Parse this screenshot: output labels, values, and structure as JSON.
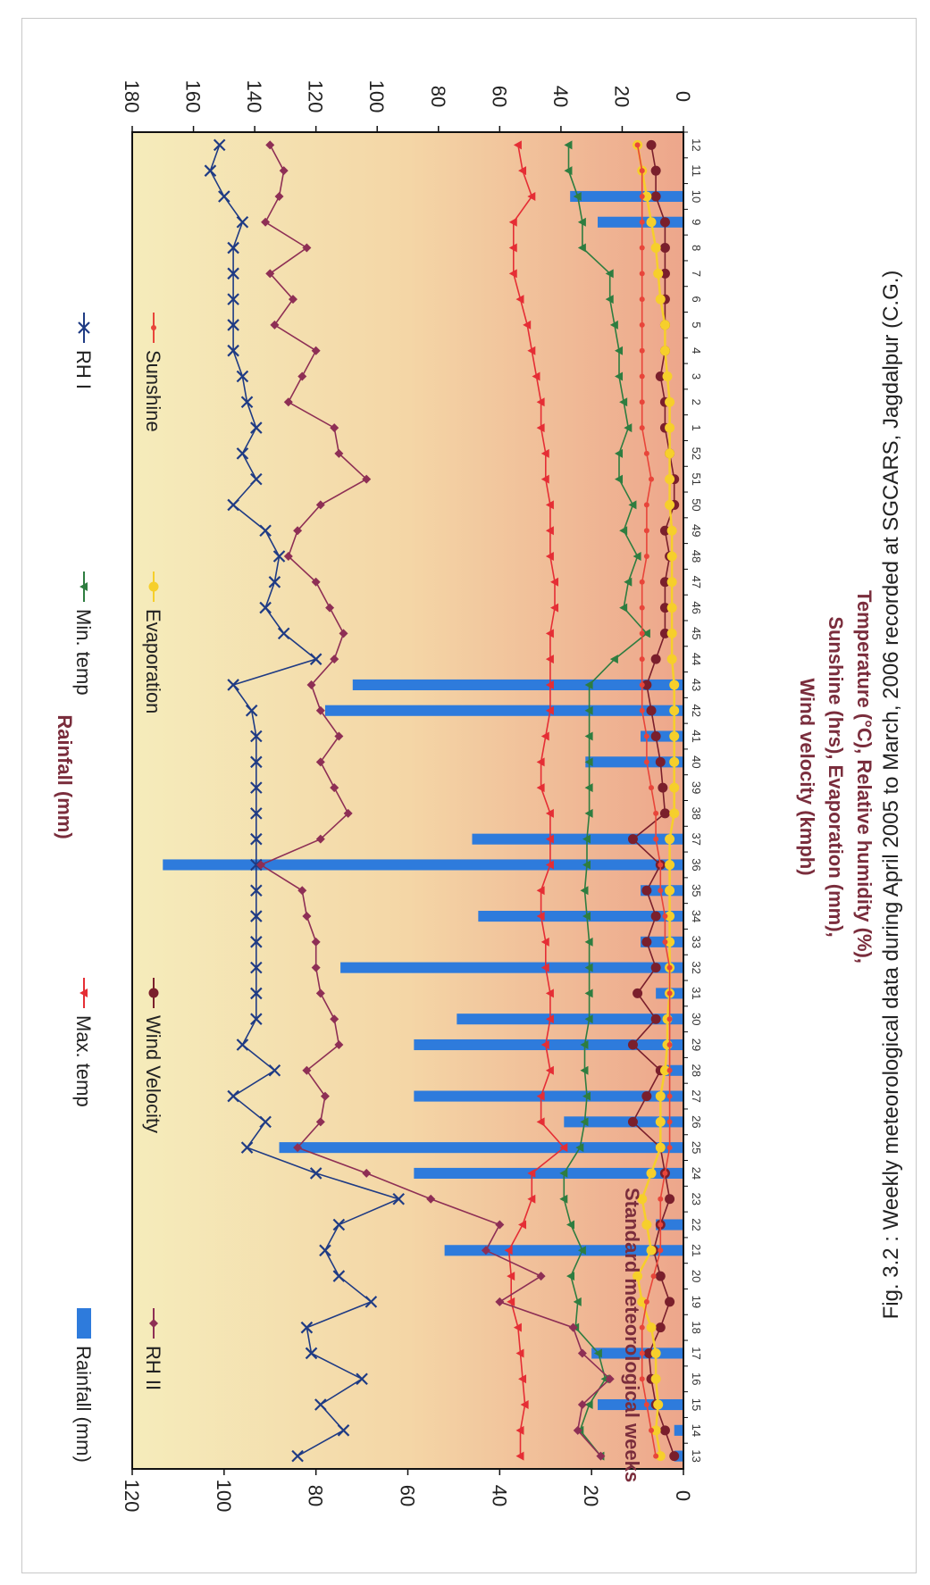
{
  "chart_data": {
    "type": "line",
    "caption": "Fig. 3.2 : Weekly meteorological data during April 2005 to March, 2006 recorded at SGCARS, Jagdalpur (C.G.)",
    "xlabel": "Standard meteorological weeks",
    "ylabel_left": [
      "Temperature (°C), Relative humidity (%),",
      "Sunshine (hrs), Evaporation (mm),",
      "Wind velocity (kmph)"
    ],
    "ylabel_right": "Rainfall (mm)",
    "ylim_left": [
      0,
      120
    ],
    "ylim_right": [
      0,
      180
    ],
    "yticks_left": [
      "0",
      "20",
      "40",
      "60",
      "80",
      "100",
      "120"
    ],
    "yticks_right": [
      "0",
      "20",
      "40",
      "60",
      "80",
      "100",
      "120",
      "140",
      "160",
      "180"
    ],
    "categories": [
      "13",
      "14",
      "15",
      "16",
      "17",
      "18",
      "19",
      "20",
      "21",
      "22",
      "23",
      "24",
      "25",
      "26",
      "27",
      "28",
      "29",
      "30",
      "31",
      "32",
      "33",
      "34",
      "35",
      "36",
      "37",
      "38",
      "39",
      "40",
      "41",
      "42",
      "43",
      "44",
      "45",
      "46",
      "47",
      "48",
      "49",
      "50",
      "51",
      "52",
      "1",
      "2",
      "3",
      "4",
      "5",
      "6",
      "7",
      "8",
      "9",
      "10",
      "11",
      "12"
    ],
    "rainfall": [
      3,
      3,
      28,
      0,
      30,
      0,
      0,
      0,
      78,
      9,
      0,
      88,
      132,
      39,
      88,
      6,
      88,
      74,
      9,
      112,
      14,
      67,
      14,
      170,
      69,
      0,
      0,
      32,
      14,
      117,
      108,
      0,
      0,
      0,
      0,
      0,
      0,
      0,
      0,
      0,
      0,
      0,
      0,
      0,
      0,
      0,
      0,
      0,
      28,
      37,
      0,
      0
    ],
    "series": [
      {
        "name": "Rainfall (mm)",
        "color": "#2e7bdc",
        "marker": "bar"
      },
      {
        "name": "Max. temp",
        "color": "#e52e35",
        "marker": "triangle",
        "values": [
          35.5,
          35.5,
          34.5,
          35,
          35.5,
          36,
          37.5,
          37.5,
          38,
          35,
          33,
          33,
          26,
          31,
          31,
          29,
          30,
          29,
          29,
          30,
          30,
          31,
          31,
          29,
          29,
          29,
          31,
          31,
          30,
          29,
          29,
          29,
          29,
          28,
          28,
          29,
          29,
          29,
          30,
          30,
          31,
          31,
          32,
          33,
          34,
          35.5,
          37,
          37,
          37,
          33,
          35,
          36
        ]
      },
      {
        "name": "Min. temp",
        "color": "#2e7d40",
        "marker": "triangle",
        "values": [
          18,
          22.5,
          20.5,
          17,
          18.5,
          23.5,
          23,
          24.5,
          22,
          24.5,
          26,
          26,
          22.5,
          21.5,
          21,
          21.5,
          21.5,
          20.5,
          20.5,
          20.5,
          20.5,
          21,
          21.5,
          21,
          21,
          20.5,
          20.5,
          20.5,
          20.5,
          20.5,
          20.5,
          15,
          8,
          13,
          12,
          10,
          13,
          11,
          14,
          14,
          12,
          13,
          14,
          14,
          15,
          16,
          16,
          22,
          22,
          23,
          25,
          25
        ]
      },
      {
        "name": "RH I",
        "color": "#1f3b84",
        "marker": "cross",
        "values": [
          84,
          74,
          79,
          70,
          81,
          82,
          68,
          75,
          78,
          75,
          62,
          80,
          95,
          91,
          98,
          89,
          96,
          93,
          93,
          93,
          93,
          93,
          93,
          93,
          93,
          93,
          93,
          93,
          93,
          94,
          98,
          80,
          87,
          91,
          89,
          88,
          91,
          98,
          93,
          96,
          93,
          95,
          96,
          98,
          98,
          98,
          98,
          98,
          96,
          100,
          103,
          101
        ]
      },
      {
        "name": "RH II",
        "color": "#8e2f55",
        "marker": "diamond",
        "values": [
          18,
          23,
          22,
          16,
          22,
          24,
          40,
          31,
          43,
          40,
          55,
          69,
          84,
          79,
          78,
          82,
          75,
          76,
          79,
          80,
          80,
          82,
          83,
          92,
          79,
          73,
          76,
          79,
          75,
          79,
          81,
          76,
          74,
          77,
          80,
          86,
          84,
          79,
          69,
          75,
          76,
          86,
          83,
          80,
          89,
          85,
          90,
          82,
          91,
          88,
          87,
          90
        ]
      },
      {
        "name": "Wind Velocity",
        "color": "#7a1f2c",
        "marker": "circle",
        "values": [
          2,
          4,
          6,
          7,
          7.5,
          5,
          3,
          5,
          6.5,
          5,
          3,
          4,
          5,
          11,
          8,
          5,
          11,
          6,
          10,
          6,
          8,
          6,
          8,
          5,
          11,
          4,
          4.5,
          5,
          6,
          7,
          8,
          6,
          4,
          4,
          4,
          3,
          4,
          2,
          2,
          3,
          4,
          4,
          5,
          4,
          4,
          4,
          4,
          4,
          4,
          6,
          6,
          7
        ]
      },
      {
        "name": "Evaporation",
        "color": "#f6cf2b",
        "marker": "circle",
        "values": [
          5,
          6,
          5.5,
          6,
          6,
          7,
          9,
          10,
          7,
          8,
          9,
          7,
          5,
          5,
          5,
          4,
          3.5,
          3.5,
          3,
          3,
          3,
          3,
          3,
          3,
          3,
          2,
          2,
          2,
          2,
          2,
          2,
          2.5,
          2.5,
          2.5,
          2.5,
          2.5,
          2.5,
          3,
          3,
          3,
          3,
          3,
          3.5,
          4,
          4,
          5,
          5.5,
          6,
          7,
          8,
          9,
          10
        ]
      },
      {
        "name": "Sunshine",
        "color": "#e8453a",
        "marker": "dot",
        "values": [
          6,
          7,
          8,
          9,
          9,
          9,
          8,
          6.5,
          5,
          5,
          5,
          4,
          3,
          3,
          3,
          3,
          3,
          3,
          3,
          3,
          4,
          4,
          5,
          5,
          6,
          6,
          7,
          8,
          8,
          9,
          9,
          9,
          9,
          9,
          9,
          8,
          8,
          8,
          7,
          8,
          9,
          9,
          9,
          9,
          9,
          9,
          9,
          9,
          9,
          9,
          9,
          10
        ]
      }
    ]
  }
}
